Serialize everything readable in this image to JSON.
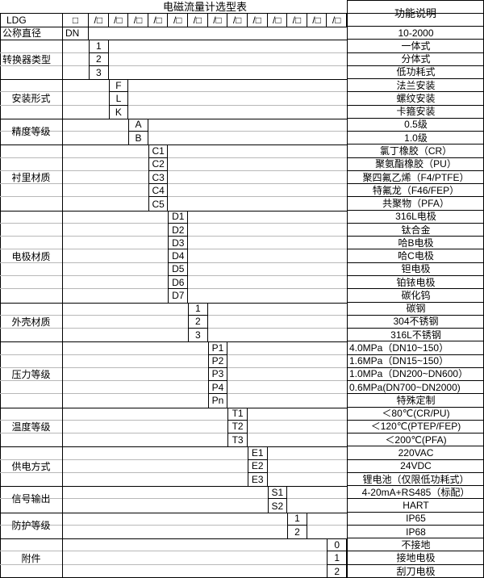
{
  "title": "电磁流量计选型表",
  "right_header": "功能说明",
  "model": {
    "label": "LDG",
    "dn_box": "□",
    "slot": "/□",
    "slot_count": 13
  },
  "sections": [
    {
      "label": "公称直径",
      "label_align": "left",
      "col": 0,
      "items": [
        {
          "code": "DN",
          "desc": "10-2000"
        }
      ]
    },
    {
      "label": "转换器类型",
      "label_align": "left",
      "col": 1,
      "items": [
        {
          "code": "1",
          "desc": "一体式"
        },
        {
          "code": "2",
          "desc": "分体式"
        },
        {
          "code": "3",
          "desc": "低功耗式"
        }
      ]
    },
    {
      "label": "安装形式",
      "col": 2,
      "items": [
        {
          "code": "F",
          "desc": "法兰安装"
        },
        {
          "code": "L",
          "desc": "螺纹安装"
        },
        {
          "code": "K",
          "desc": "卡箍安装"
        }
      ]
    },
    {
      "label": "精度等级",
      "col": 3,
      "items": [
        {
          "code": "A",
          "desc": "0.5级"
        },
        {
          "code": "B",
          "desc": "1.0级"
        }
      ]
    },
    {
      "label": "衬里材质",
      "col": 4,
      "items": [
        {
          "code": "C1",
          "desc": "氯丁橡胶（CR）"
        },
        {
          "code": "C2",
          "desc": "聚氨酯橡胶（PU）"
        },
        {
          "code": "C3",
          "desc": "聚四氟乙烯（F4/PTFE）"
        },
        {
          "code": "C4",
          "desc": "特氟龙（F46/FEP）"
        },
        {
          "code": "C5",
          "desc": "共聚物（PFA）"
        }
      ]
    },
    {
      "label": "电极材质",
      "col": 5,
      "items": [
        {
          "code": "D1",
          "desc": "316L电极"
        },
        {
          "code": "D2",
          "desc": "钛合金"
        },
        {
          "code": "D3",
          "desc": "哈B电极"
        },
        {
          "code": "D4",
          "desc": "哈C电极"
        },
        {
          "code": "D5",
          "desc": "钽电极"
        },
        {
          "code": "D6",
          "desc": "铂铱电极"
        },
        {
          "code": "D7",
          "desc": "碳化钨"
        }
      ]
    },
    {
      "label": "外壳材质",
      "col": 6,
      "items": [
        {
          "code": "1",
          "desc": "碳钢"
        },
        {
          "code": "2",
          "desc": "304不锈钢"
        },
        {
          "code": "3",
          "desc": "316L不锈钢"
        }
      ]
    },
    {
      "label": "压力等级",
      "col": 7,
      "items": [
        {
          "code": "P1",
          "desc": "4.0MPa（DN10~150）",
          "align": "left"
        },
        {
          "code": "P2",
          "desc": "1.6MPa（DN15~150）",
          "align": "left"
        },
        {
          "code": "P3",
          "desc": "1.0MPa（DN200~DN600）",
          "align": "left"
        },
        {
          "code": "P4",
          "desc": "0.6MPa(DN700~DN2000)",
          "align": "left"
        },
        {
          "code": "Pn",
          "desc": "特殊定制"
        }
      ]
    },
    {
      "label": "温度等级",
      "col": 8,
      "items": [
        {
          "code": "T1",
          "desc": "＜80℃(CR/PU)"
        },
        {
          "code": "T2",
          "desc": "＜120℃(PTEP/FEP)"
        },
        {
          "code": "T3",
          "desc": "＜200℃(PFA)"
        }
      ]
    },
    {
      "label": "供电方式",
      "col": 9,
      "items": [
        {
          "code": "E1",
          "desc": "220VAC"
        },
        {
          "code": "E2",
          "desc": "24VDC"
        },
        {
          "code": "E3",
          "desc": "锂电池（仅限低功耗式）"
        }
      ]
    },
    {
      "label": "信号输出",
      "col": 10,
      "items": [
        {
          "code": "S1",
          "desc": "4-20mA+RS485（标配）"
        },
        {
          "code": "S2",
          "desc": "HART"
        }
      ]
    },
    {
      "label": "防护等级",
      "col": 11,
      "items": [
        {
          "code": "1",
          "desc": "IP65"
        },
        {
          "code": "2",
          "desc": "IP68"
        }
      ]
    },
    {
      "label": "附件",
      "col": 13,
      "items": [
        {
          "code": "0",
          "desc": "不接地"
        },
        {
          "code": "1",
          "desc": "接地电极"
        },
        {
          "code": "2",
          "desc": "刮刀电极"
        }
      ]
    }
  ],
  "colors": {
    "line": "#000000",
    "gridline": "#b8b8b8",
    "background": "#ffffff",
    "text": "#000000"
  }
}
